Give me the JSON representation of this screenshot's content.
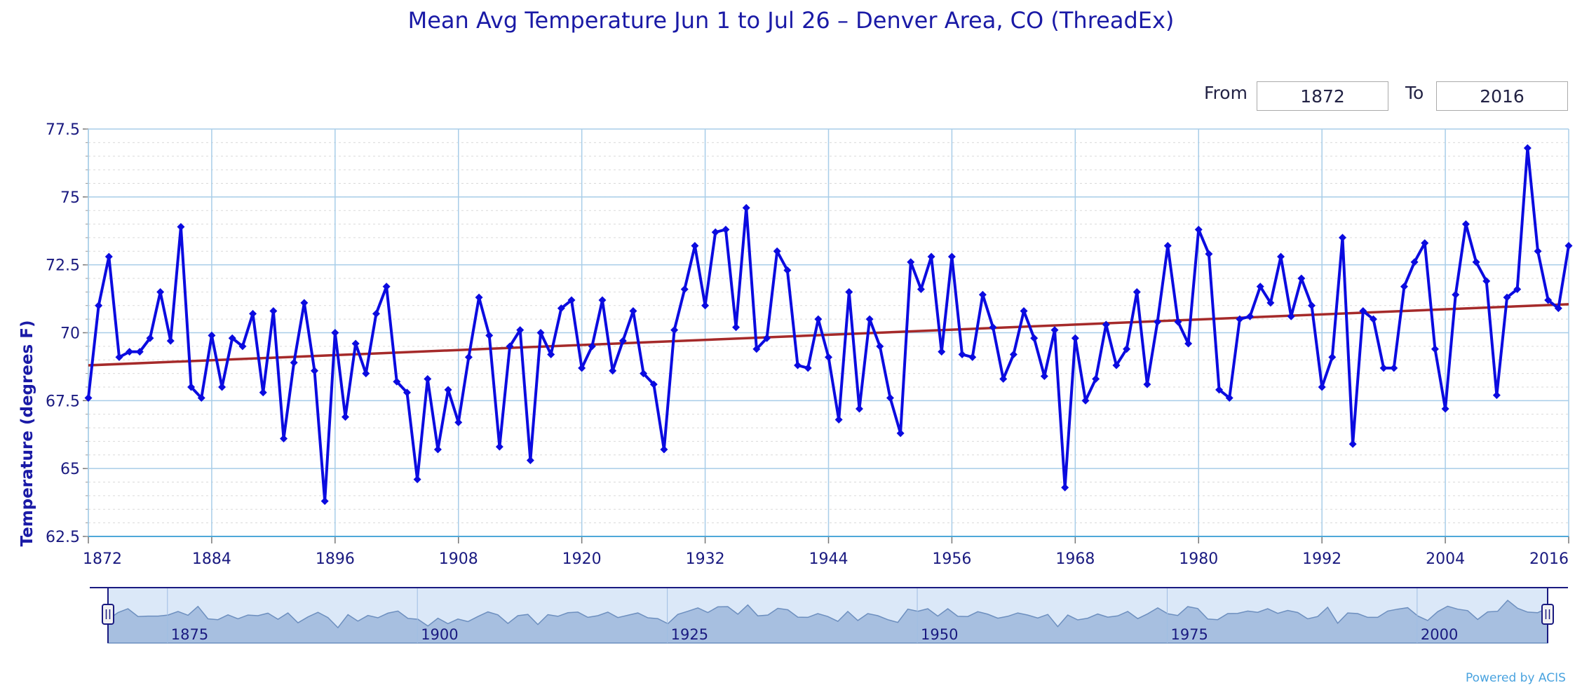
{
  "range": {
    "from_label": "From",
    "from_value": "1872",
    "to_label": "To",
    "to_value": "2016"
  },
  "credit": "Powered by ACIS",
  "colors": {
    "series": "#0b0be0",
    "trend": "#a52a2a",
    "grid": "#a8cde8",
    "navigator_fill": "#a7bfe0",
    "navigator_bg": "#dbe8f8"
  },
  "chart_data": {
    "type": "line",
    "title": "Mean Avg Temperature Jun 1 to Jul 26 – Denver Area, CO (ThreadEx)",
    "ylabel": "Temperature (degrees F)",
    "xlabel": "",
    "xlim": [
      1872,
      2016
    ],
    "ylim": [
      62.5,
      77.5
    ],
    "xticks": [
      1872,
      1884,
      1896,
      1908,
      1920,
      1932,
      1944,
      1956,
      1968,
      1980,
      1992,
      2004,
      2016
    ],
    "yticks": [
      62.5,
      65,
      67.5,
      70,
      72.5,
      75,
      77.5
    ],
    "ytick_labels": [
      "62.5",
      "65",
      "67.5",
      "70",
      "72.5",
      "75",
      "77.5"
    ],
    "grid": true,
    "series": [
      {
        "type": "line",
        "x_start": 1872,
        "x_step": 1,
        "values": [
          67.6,
          71.0,
          72.8,
          69.1,
          69.3,
          69.3,
          69.8,
          71.5,
          69.7,
          73.9,
          68.0,
          67.6,
          69.9,
          68.0,
          69.8,
          69.5,
          70.7,
          67.8,
          70.8,
          66.1,
          68.9,
          71.1,
          68.6,
          63.8,
          70.0,
          66.9,
          69.6,
          68.5,
          70.7,
          71.7,
          68.2,
          67.8,
          64.6,
          68.3,
          65.7,
          67.9,
          66.7,
          69.1,
          71.3,
          69.9,
          65.8,
          69.5,
          70.1,
          65.3,
          70.0,
          69.2,
          70.9,
          71.2,
          68.7,
          69.5,
          71.2,
          68.6,
          69.7,
          70.8,
          68.5,
          68.1,
          65.7,
          70.1,
          71.6,
          73.2,
          71.0,
          73.7,
          73.8,
          70.2,
          74.6,
          69.4,
          69.8,
          73.0,
          72.3,
          68.8,
          68.7,
          70.5,
          69.1,
          66.8,
          71.5,
          67.2,
          70.5,
          69.5,
          67.6,
          66.3,
          72.6,
          71.6,
          72.8,
          69.3,
          72.8,
          69.2,
          69.1,
          71.4,
          70.2,
          68.3,
          69.2,
          70.8,
          69.8,
          68.4,
          70.1,
          64.3,
          69.8,
          67.5,
          68.3,
          70.3,
          68.8,
          69.4,
          71.5,
          68.1,
          70.4,
          73.2,
          70.4,
          69.6,
          73.8,
          72.9,
          67.9,
          67.6,
          70.5,
          70.6,
          71.7,
          71.1,
          72.8,
          70.6,
          72.0,
          71.0,
          68.0,
          69.1,
          73.5,
          65.9,
          70.8,
          70.5,
          68.7,
          68.7,
          71.7,
          72.6,
          73.3,
          69.4,
          67.2,
          71.4,
          74.0,
          72.6,
          71.9,
          67.7,
          71.3,
          71.6,
          76.8,
          73.0,
          71.2,
          70.9,
          73.2
        ]
      },
      {
        "type": "trend",
        "x": [
          1872,
          2016
        ],
        "values": [
          68.8,
          71.05
        ]
      }
    ],
    "navigator": {
      "tick_labels": [
        "1875",
        "1900",
        "1925",
        "1950",
        "1975",
        "2000"
      ],
      "tick_years": [
        1875,
        1900,
        1925,
        1950,
        1975,
        2000
      ],
      "range_start": 1872,
      "range_end": 2016
    }
  }
}
